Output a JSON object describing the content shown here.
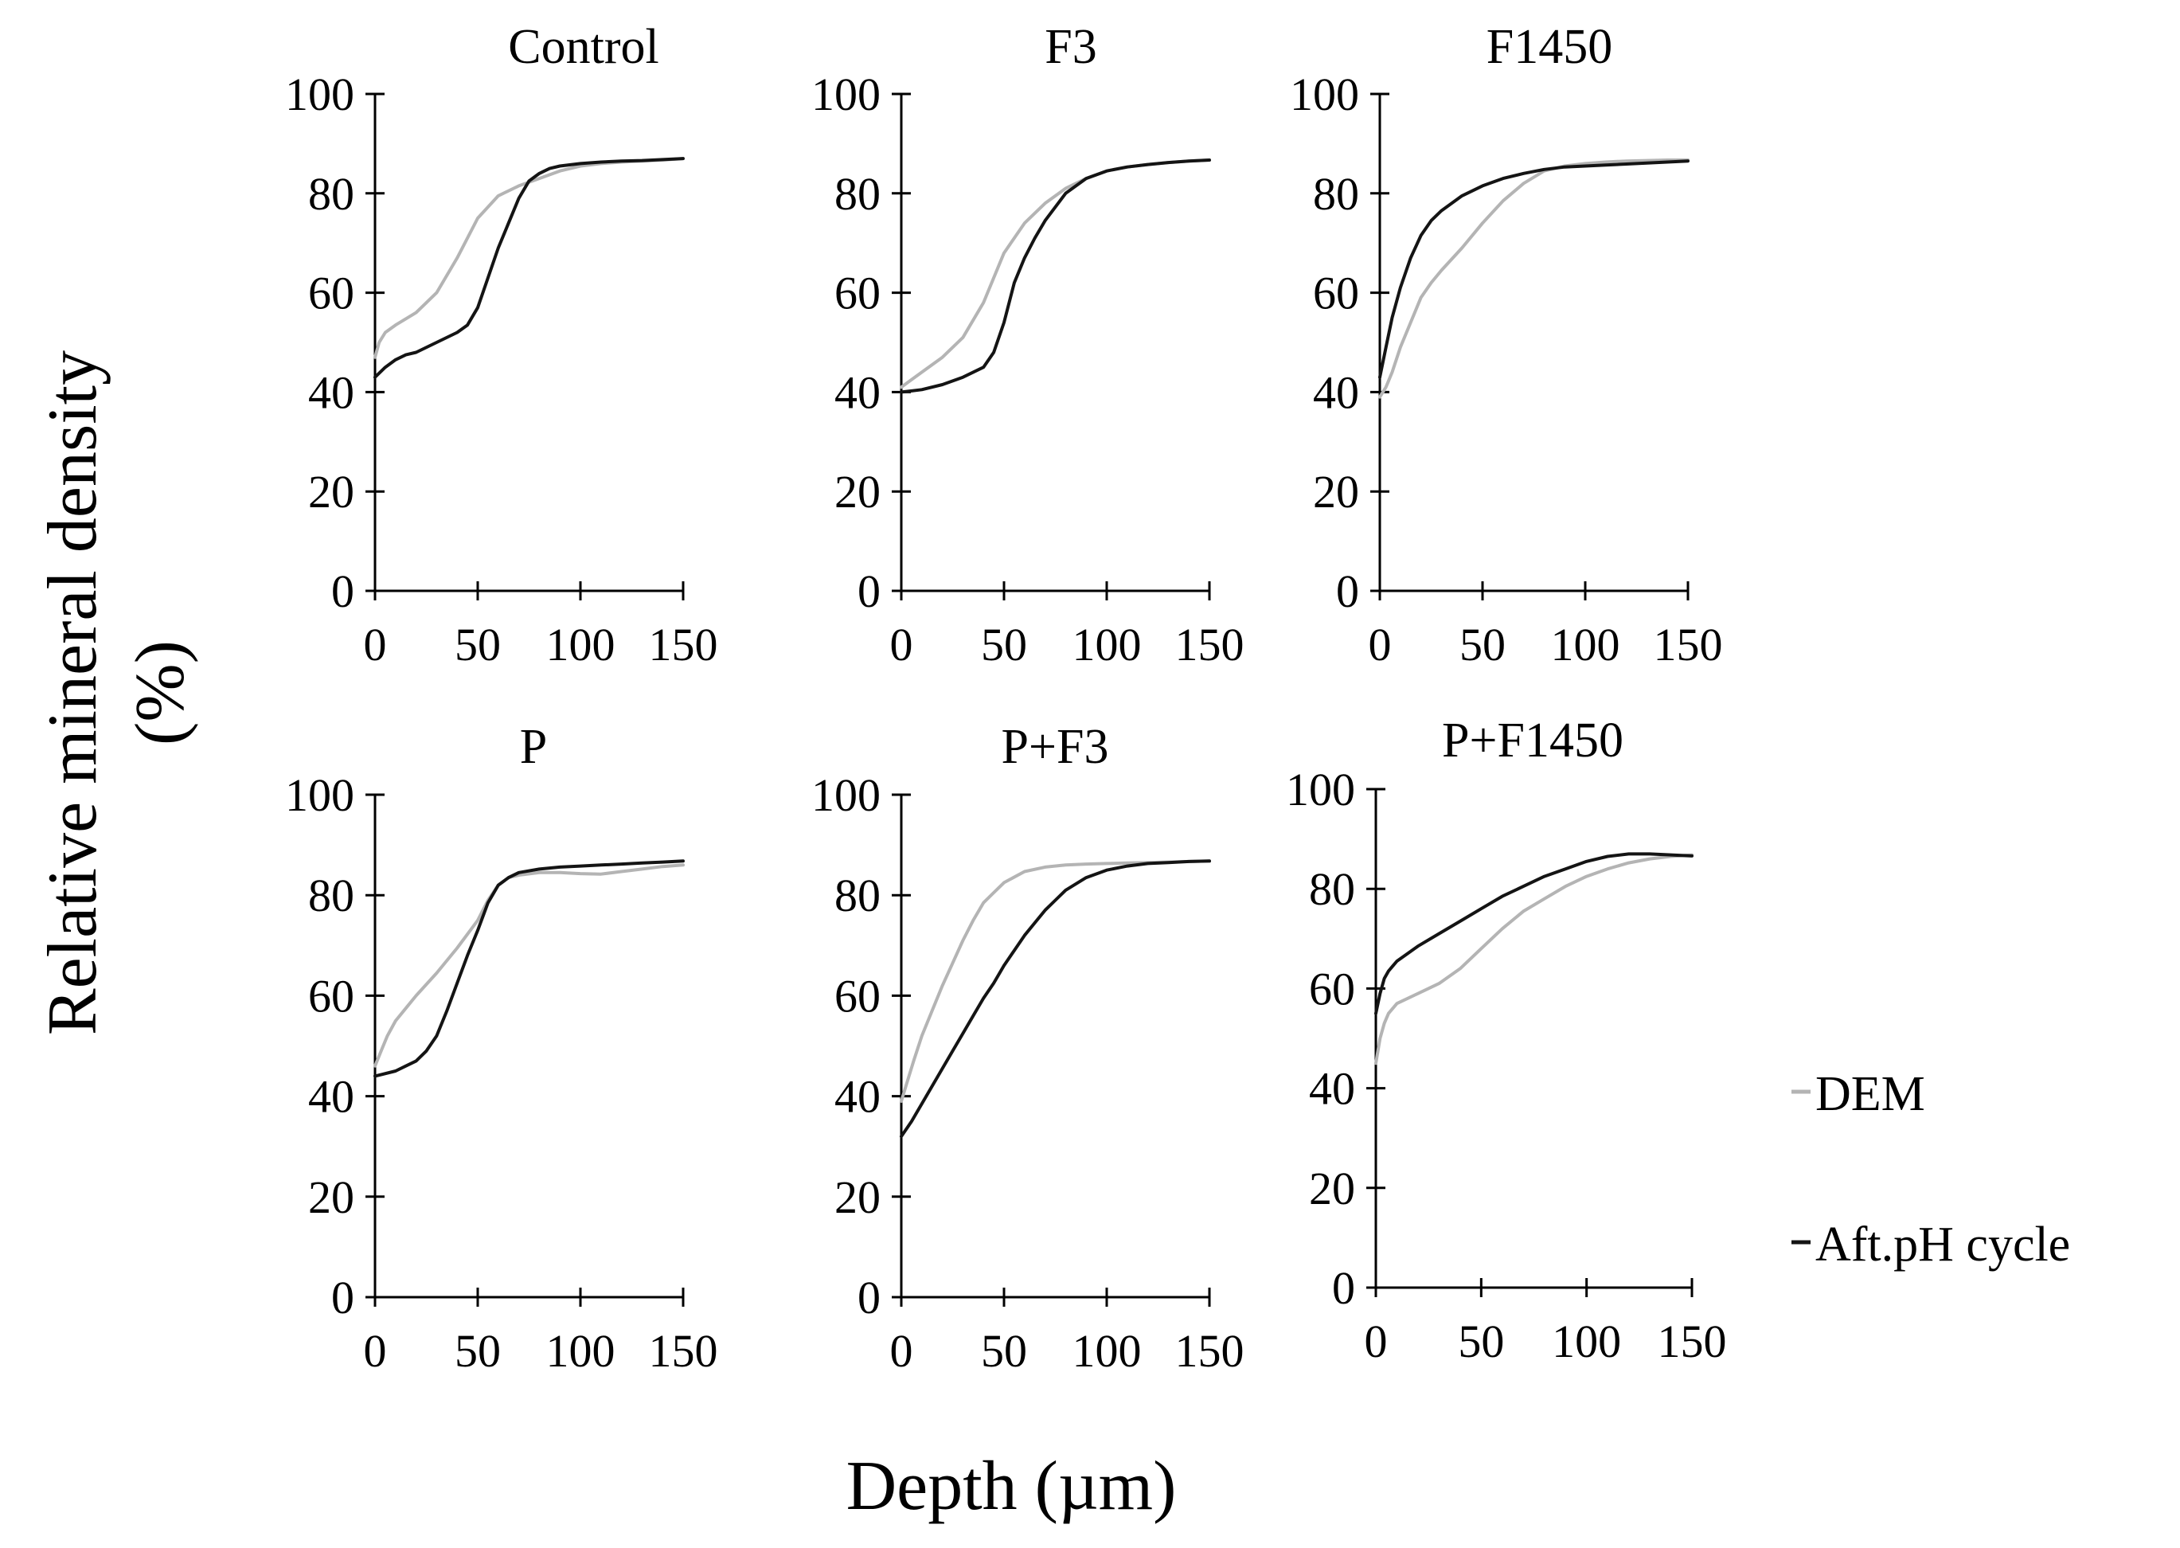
{
  "figure": {
    "ylabel_line1": "Relative mineral density",
    "ylabel_line2": "(%)",
    "xlabel": "Depth (µm)"
  },
  "legend": {
    "items": [
      {
        "label": "DEM",
        "color": "#b4b4b4",
        "marker": "-"
      },
      {
        "label": "Aft.pH cycle",
        "color": "#141414",
        "marker": "-"
      }
    ]
  },
  "chart_data": [
    {
      "type": "line",
      "title": "Control",
      "xlim": [
        0,
        150
      ],
      "ylim": [
        0,
        100
      ],
      "xticks": [
        "0",
        "50",
        "100",
        "150"
      ],
      "yticks": [
        "0",
        "20",
        "40",
        "60",
        "80",
        "100"
      ],
      "series": [
        {
          "name": "DEM",
          "color": "#b4b4b4",
          "x": [
            0,
            2,
            5,
            10,
            20,
            30,
            40,
            50,
            60,
            70,
            80,
            90,
            100,
            110,
            120,
            130,
            140,
            150
          ],
          "y": [
            47,
            50,
            52,
            53.5,
            56,
            60,
            67,
            75,
            79.5,
            81.5,
            83,
            84.5,
            85.5,
            86,
            86.3,
            86.5,
            86.7,
            87
          ]
        },
        {
          "name": "Aft.pH cycle",
          "color": "#141414",
          "x": [
            0,
            5,
            10,
            15,
            20,
            30,
            40,
            45,
            50,
            55,
            60,
            65,
            70,
            75,
            80,
            85,
            90,
            100,
            110,
            120,
            130,
            140,
            150
          ],
          "y": [
            43,
            45,
            46.5,
            47.5,
            48,
            50,
            52,
            53.5,
            57,
            63,
            69,
            74,
            79,
            82.5,
            84,
            85,
            85.5,
            86,
            86.3,
            86.5,
            86.6,
            86.8,
            87
          ]
        }
      ]
    },
    {
      "type": "line",
      "title": "F3",
      "xlim": [
        0,
        150
      ],
      "ylim": [
        0,
        100
      ],
      "xticks": [
        "0",
        "50",
        "100",
        "150"
      ],
      "yticks": [
        "0",
        "20",
        "40",
        "60",
        "80",
        "100"
      ],
      "series": [
        {
          "name": "DEM",
          "color": "#b4b4b4",
          "x": [
            0,
            5,
            10,
            20,
            30,
            40,
            45,
            50,
            60,
            70,
            80,
            90,
            100,
            110,
            120,
            130,
            140,
            150
          ],
          "y": [
            41,
            42.5,
            44,
            47,
            51,
            58,
            63,
            68,
            74,
            78,
            81,
            83,
            84.5,
            85.3,
            85.8,
            86.2,
            86.5,
            86.7
          ]
        },
        {
          "name": "Aft.pH cycle",
          "color": "#141414",
          "x": [
            0,
            10,
            20,
            30,
            40,
            45,
            50,
            55,
            60,
            65,
            70,
            80,
            90,
            100,
            110,
            120,
            130,
            140,
            150
          ],
          "y": [
            40,
            40.5,
            41.5,
            43,
            45,
            48,
            54,
            62,
            67,
            71,
            74.5,
            80,
            83,
            84.5,
            85.3,
            85.8,
            86.2,
            86.5,
            86.7
          ]
        }
      ]
    },
    {
      "type": "line",
      "title": "F1450",
      "xlim": [
        0,
        150
      ],
      "ylim": [
        0,
        100
      ],
      "xticks": [
        "0",
        "50",
        "100",
        "150"
      ],
      "yticks": [
        "0",
        "20",
        "40",
        "60",
        "80",
        "100"
      ],
      "series": [
        {
          "name": "DEM",
          "color": "#b4b4b4",
          "x": [
            0,
            3,
            6,
            10,
            15,
            20,
            25,
            30,
            40,
            50,
            60,
            70,
            80,
            90,
            100,
            110,
            120,
            130,
            140,
            150
          ],
          "y": [
            39,
            41,
            44,
            49,
            54,
            59,
            62,
            64.5,
            69,
            74,
            78.5,
            82,
            84.5,
            85.5,
            86,
            86.3,
            86.5,
            86.6,
            86.7,
            86.7
          ]
        },
        {
          "name": "Aft.pH cycle",
          "color": "#141414",
          "x": [
            0,
            3,
            6,
            10,
            15,
            20,
            25,
            30,
            40,
            50,
            60,
            70,
            80,
            90,
            100,
            110,
            120,
            130,
            140,
            150
          ],
          "y": [
            43,
            49,
            55,
            61,
            67,
            71.5,
            74.5,
            76.5,
            79.5,
            81.5,
            83,
            84,
            84.8,
            85.3,
            85.5,
            85.7,
            85.9,
            86.1,
            86.3,
            86.5
          ]
        }
      ]
    },
    {
      "type": "line",
      "title": "P",
      "xlim": [
        0,
        150
      ],
      "ylim": [
        0,
        100
      ],
      "xticks": [
        "0",
        "50",
        "100",
        "150"
      ],
      "yticks": [
        "0",
        "20",
        "40",
        "60",
        "80",
        "100"
      ],
      "series": [
        {
          "name": "DEM",
          "color": "#b4b4b4",
          "x": [
            0,
            3,
            6,
            10,
            15,
            20,
            30,
            40,
            50,
            55,
            60,
            65,
            70,
            80,
            90,
            100,
            110,
            120,
            130,
            140,
            150
          ],
          "y": [
            46,
            49,
            52,
            55,
            57.5,
            60,
            64.5,
            69.5,
            75,
            79,
            82,
            83.5,
            84,
            84.5,
            84.5,
            84.3,
            84.2,
            84.7,
            85.2,
            85.7,
            86
          ]
        },
        {
          "name": "Aft.pH cycle",
          "color": "#141414",
          "x": [
            0,
            10,
            15,
            20,
            25,
            30,
            35,
            40,
            45,
            50,
            55,
            60,
            65,
            70,
            80,
            90,
            100,
            110,
            120,
            130,
            140,
            150
          ],
          "y": [
            44,
            45,
            46,
            47,
            49,
            52,
            57,
            62.5,
            68,
            73,
            78.5,
            82,
            83.5,
            84.5,
            85.2,
            85.6,
            85.8,
            86,
            86.2,
            86.4,
            86.6,
            86.8
          ]
        }
      ]
    },
    {
      "type": "line",
      "title": "P+F3",
      "xlim": [
        0,
        150
      ],
      "ylim": [
        0,
        100
      ],
      "xticks": [
        "0",
        "50",
        "100",
        "150"
      ],
      "yticks": [
        "0",
        "20",
        "40",
        "60",
        "80",
        "100"
      ],
      "series": [
        {
          "name": "DEM",
          "color": "#b4b4b4",
          "x": [
            0,
            3,
            6,
            10,
            15,
            20,
            25,
            30,
            35,
            40,
            45,
            50,
            60,
            70,
            80,
            90,
            100,
            110,
            120,
            130,
            140,
            150
          ],
          "y": [
            39,
            43,
            47,
            52,
            57,
            62,
            66.5,
            71,
            75,
            78.5,
            80.5,
            82.5,
            84.7,
            85.6,
            86,
            86.2,
            86.3,
            86.4,
            86.5,
            86.6,
            86.7,
            86.8
          ]
        },
        {
          "name": "Aft.pH cycle",
          "color": "#141414",
          "x": [
            0,
            5,
            10,
            15,
            20,
            25,
            30,
            35,
            40,
            45,
            50,
            55,
            60,
            65,
            70,
            75,
            80,
            90,
            100,
            110,
            120,
            130,
            140,
            150
          ],
          "y": [
            32,
            35,
            38.5,
            42,
            45.5,
            49,
            52.5,
            56,
            59.5,
            62.5,
            66,
            69,
            72,
            74.5,
            77,
            79,
            81,
            83.5,
            85,
            85.8,
            86.3,
            86.5,
            86.7,
            86.8
          ]
        }
      ]
    },
    {
      "type": "line",
      "title": "P+F1450",
      "xlim": [
        0,
        150
      ],
      "ylim": [
        0,
        100
      ],
      "xticks": [
        "0",
        "50",
        "100",
        "150"
      ],
      "yticks": [
        "0",
        "20",
        "40",
        "60",
        "80",
        "100"
      ],
      "series": [
        {
          "name": "DEM",
          "color": "#b4b4b4",
          "x": [
            0,
            2,
            4,
            6,
            8,
            10,
            15,
            20,
            30,
            40,
            50,
            60,
            70,
            80,
            90,
            100,
            110,
            120,
            130,
            140,
            150
          ],
          "y": [
            45,
            50,
            53,
            55,
            56,
            57,
            58,
            59,
            61,
            64,
            68,
            72,
            75.5,
            78,
            80.5,
            82.5,
            84,
            85.2,
            86,
            86.5,
            86.8
          ]
        },
        {
          "name": "Aft.pH cycle",
          "color": "#141414",
          "x": [
            0,
            2,
            4,
            6,
            8,
            10,
            15,
            20,
            30,
            40,
            50,
            60,
            70,
            80,
            90,
            100,
            110,
            120,
            130,
            140,
            150
          ],
          "y": [
            55,
            59,
            62,
            63.5,
            64.5,
            65.5,
            67,
            68.5,
            71,
            73.5,
            76,
            78.5,
            80.5,
            82.5,
            84,
            85.5,
            86.5,
            87,
            87,
            86.8,
            86.6
          ]
        }
      ]
    }
  ]
}
